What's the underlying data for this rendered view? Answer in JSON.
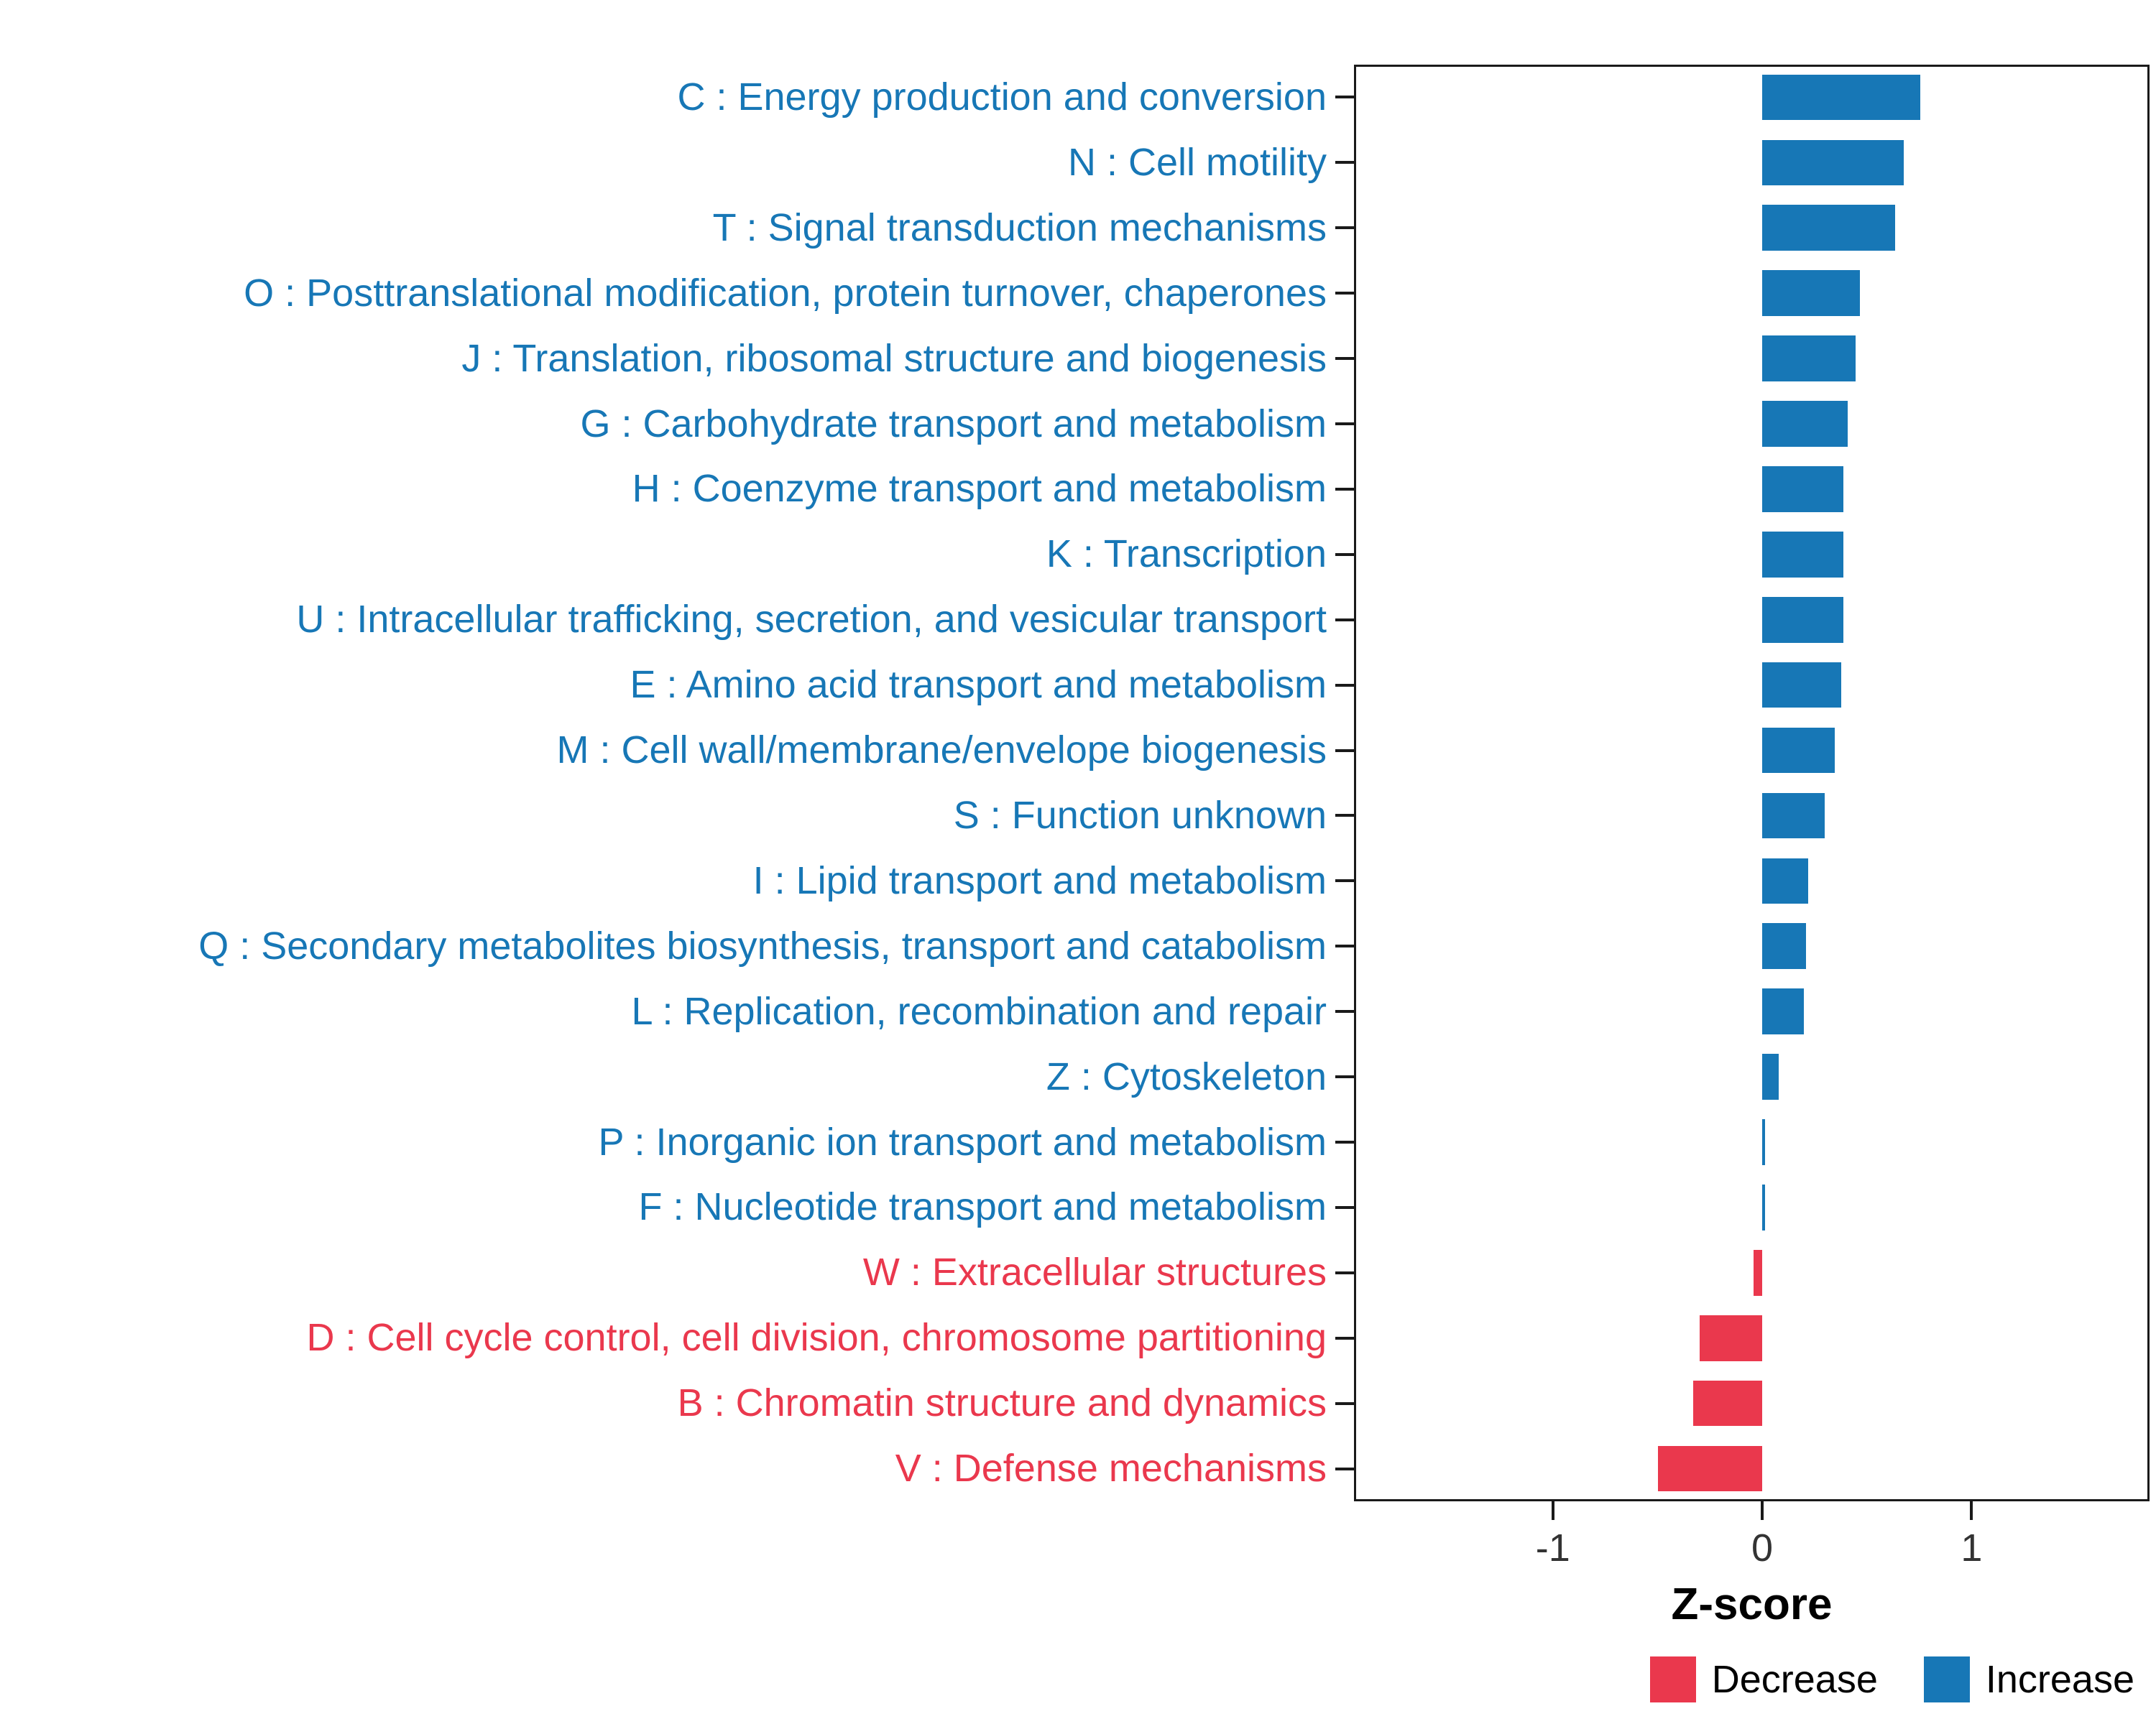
{
  "chart_data": {
    "type": "bar",
    "orientation": "horizontal",
    "title": "",
    "xlabel": "Z-score",
    "ylabel": "",
    "xlim": [
      -1.95,
      1.85
    ],
    "x_ticks": [
      -1,
      0,
      1
    ],
    "grid": false,
    "legend_position": "bottom-right",
    "colors": {
      "increase": "#1777b6",
      "decrease": "#ea384d"
    },
    "categories": [
      "C : Energy production and conversion",
      "N : Cell motility",
      "T : Signal transduction mechanisms",
      "O : Posttranslational modification, protein turnover, chaperones",
      "J : Translation, ribosomal structure and biogenesis",
      "G : Carbohydrate transport and metabolism",
      "H : Coenzyme transport and metabolism",
      "K : Transcription",
      "U : Intracellular trafficking, secretion, and vesicular transport",
      "E : Amino acid transport and metabolism",
      "M : Cell wall/membrane/envelope biogenesis",
      "S : Function unknown",
      "I : Lipid transport and metabolism",
      "Q : Secondary metabolites biosynthesis, transport and catabolism",
      "L : Replication, recombination and repair",
      "Z : Cytoskeleton",
      "P : Inorganic ion transport and metabolism",
      "F : Nucleotide transport and metabolism",
      "W : Extracellular structures",
      "D : Cell cycle control, cell division, chromosome partitioning",
      "B : Chromatin structure and dynamics",
      "V : Defense mechanisms"
    ],
    "values": [
      0.76,
      0.68,
      0.64,
      0.47,
      0.45,
      0.41,
      0.39,
      0.39,
      0.39,
      0.38,
      0.35,
      0.3,
      0.22,
      0.21,
      0.2,
      0.08,
      0.015,
      0.015,
      -0.04,
      -0.3,
      -0.33,
      -0.5
    ],
    "direction": [
      "increase",
      "increase",
      "increase",
      "increase",
      "increase",
      "increase",
      "increase",
      "increase",
      "increase",
      "increase",
      "increase",
      "increase",
      "increase",
      "increase",
      "increase",
      "increase",
      "increase",
      "increase",
      "decrease",
      "decrease",
      "decrease",
      "decrease"
    ],
    "legend": [
      {
        "label": "Decrease",
        "key": "decrease"
      },
      {
        "label": "Increase",
        "key": "increase"
      }
    ]
  }
}
